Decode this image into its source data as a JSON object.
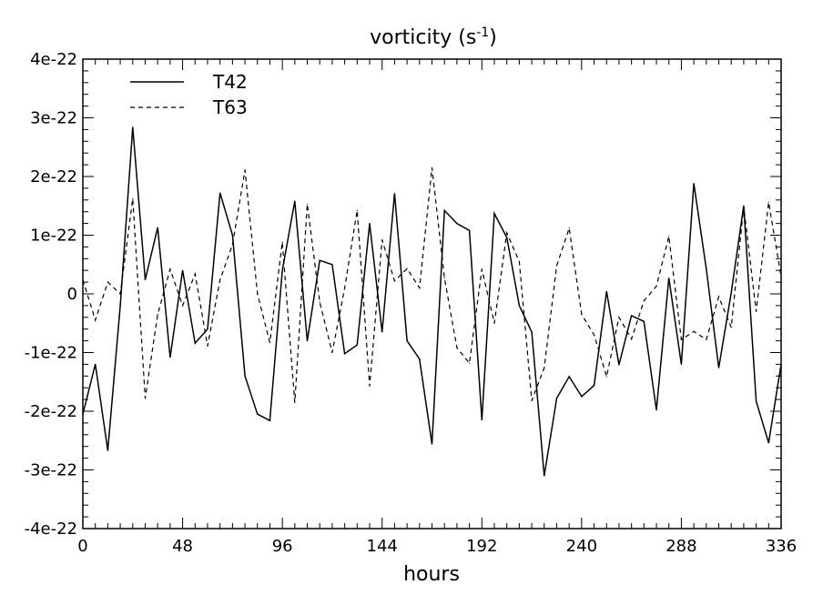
{
  "chart_data": {
    "type": "line",
    "title": "vorticity (s",
    "title_superscript": "-1",
    "title_close": ")",
    "xlabel": "hours",
    "ylabel": "",
    "xlim": [
      0,
      336
    ],
    "ylim": [
      -4e-22,
      4e-22
    ],
    "x_ticks": [
      0,
      48,
      96,
      144,
      192,
      240,
      288,
      336
    ],
    "x_tick_labels": [
      "0",
      "48",
      "96",
      "144",
      "192",
      "240",
      "288",
      "336"
    ],
    "y_ticks": [
      -4e-22,
      -3e-22,
      -2e-22,
      -1e-22,
      0,
      1e-22,
      2e-22,
      3e-22,
      4e-22
    ],
    "y_tick_labels": [
      "-4e-22",
      "-3e-22",
      "-2e-22",
      "-1e-22",
      "0",
      "1e-22",
      "2e-22",
      "3e-22",
      "4e-22"
    ],
    "grid": false,
    "legend_position": "top-left",
    "x": [
      0,
      6,
      12,
      18,
      24,
      30,
      36,
      42,
      48,
      54,
      60,
      66,
      72,
      78,
      84,
      90,
      96,
      102,
      108,
      114,
      120,
      126,
      132,
      138,
      144,
      150,
      156,
      162,
      168,
      174,
      180,
      186,
      192,
      198,
      204,
      210,
      216,
      222,
      228,
      234,
      240,
      246,
      252,
      258,
      264,
      270,
      276,
      282,
      288,
      294,
      300,
      306,
      312,
      318,
      324,
      330,
      336
    ],
    "series": [
      {
        "name": "T42",
        "style": "solid",
        "color": "#000000",
        "values": [
          -2.05e-22,
          -1.2e-22,
          -2.67e-22,
          -2e-23,
          2.84e-22,
          2.4e-23,
          1.13e-22,
          -1.08e-22,
          4e-23,
          -8.4e-23,
          -6e-23,
          1.72e-22,
          1e-22,
          -1.4e-22,
          -2.05e-22,
          -2.16e-22,
          4e-23,
          1.58e-22,
          -8e-23,
          5.7e-23,
          5e-23,
          -1.02e-22,
          -8.7e-23,
          1.2e-22,
          -6.5e-23,
          1.71e-22,
          -8e-23,
          -1.11e-22,
          -2.56e-22,
          1.42e-22,
          1.2e-22,
          1.08e-22,
          -2.15e-22,
          1.37e-22,
          9.6e-23,
          -2e-23,
          -6.5e-23,
          -3.1e-22,
          -1.78e-22,
          -1.41e-22,
          -1.75e-22,
          -1.56e-22,
          4e-24,
          -1.21e-22,
          -3.7e-23,
          -4.7e-23,
          -1.98e-22,
          2.7e-23,
          -1.2e-22,
          1.88e-22,
          4.3e-23,
          -1.26e-22,
          2e-24,
          1.5e-22,
          -1.83e-22,
          -2.54e-22,
          -1.2e-22
        ]
      },
      {
        "name": "T63",
        "style": "dashed",
        "color": "#000000",
        "values": [
          2.4e-23,
          -4.5e-23,
          2e-23,
          0.0,
          1.62e-22,
          -1.78e-22,
          -3.5e-23,
          4.2e-23,
          -2e-23,
          3.4e-23,
          -8.9e-23,
          2.4e-23,
          8.4e-23,
          2.11e-22,
          0.0,
          -8.3e-23,
          8.8e-23,
          -1.85e-22,
          1.53e-22,
          -1.4e-23,
          -1e-22,
          1e-23,
          1.42e-22,
          -1.57e-22,
          9.2e-23,
          2.2e-23,
          4.3e-23,
          1e-23,
          2.15e-22,
          2.7e-23,
          -9.2e-23,
          -1.18e-22,
          4.2e-23,
          -5e-23,
          1.04e-22,
          5.5e-23,
          -1.82e-22,
          -1.26e-22,
          4.8e-23,
          1.12e-22,
          -3.5e-23,
          -7e-23,
          -1.41e-22,
          -4e-23,
          -7.7e-23,
          -1.2e-23,
          1.3e-23,
          9.8e-23,
          -7.8e-23,
          -6.4e-23,
          -7.8e-23,
          -5e-24,
          -5.7e-23,
          1.49e-22,
          -3e-23,
          1.56e-22,
          3e-23
        ]
      }
    ]
  }
}
